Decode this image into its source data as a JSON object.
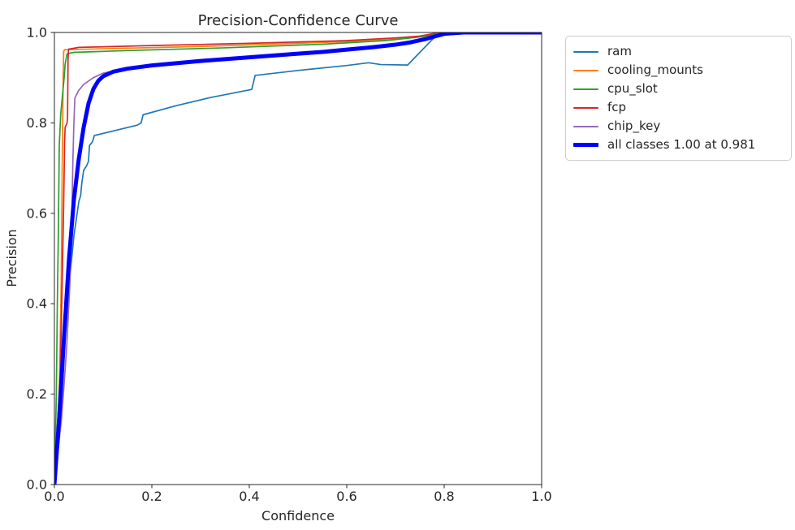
{
  "chart_data": {
    "type": "line",
    "title": "Precision-Confidence Curve",
    "xlabel": "Confidence",
    "ylabel": "Precision",
    "xlim": [
      0.0,
      1.0
    ],
    "ylim": [
      0.0,
      1.0
    ],
    "xticks": [
      0.0,
      0.2,
      0.4,
      0.6,
      0.8,
      1.0
    ],
    "yticks": [
      0.0,
      0.2,
      0.4,
      0.6,
      0.8,
      1.0
    ],
    "xtick_labels": [
      "0.0",
      "0.2",
      "0.4",
      "0.6",
      "0.8",
      "1.0"
    ],
    "ytick_labels": [
      "0.0",
      "0.2",
      "0.4",
      "0.6",
      "0.8",
      "1.0"
    ],
    "grid": false,
    "legend_position": "outside-upper-right",
    "axis_color": "#262626",
    "background_color": "#ffffff",
    "series": [
      {
        "name": "ram",
        "color": "#1f77b4",
        "width": 1.7,
        "points": [
          [
            0.0,
            0.0
          ],
          [
            0.004,
            0.05
          ],
          [
            0.008,
            0.12
          ],
          [
            0.015,
            0.22
          ],
          [
            0.02,
            0.3
          ],
          [
            0.03,
            0.44
          ],
          [
            0.04,
            0.55
          ],
          [
            0.05,
            0.625
          ],
          [
            0.054,
            0.64
          ],
          [
            0.056,
            0.665
          ],
          [
            0.06,
            0.695
          ],
          [
            0.066,
            0.705
          ],
          [
            0.07,
            0.715
          ],
          [
            0.072,
            0.75
          ],
          [
            0.078,
            0.758
          ],
          [
            0.082,
            0.772
          ],
          [
            0.17,
            0.795
          ],
          [
            0.178,
            0.8
          ],
          [
            0.182,
            0.818
          ],
          [
            0.25,
            0.838
          ],
          [
            0.32,
            0.856
          ],
          [
            0.405,
            0.874
          ],
          [
            0.412,
            0.905
          ],
          [
            0.5,
            0.916
          ],
          [
            0.6,
            0.927
          ],
          [
            0.645,
            0.933
          ],
          [
            0.67,
            0.929
          ],
          [
            0.725,
            0.928
          ],
          [
            0.785,
            0.995
          ],
          [
            0.81,
            1.0
          ],
          [
            1.0,
            1.0
          ]
        ]
      },
      {
        "name": "cooling_mounts",
        "color": "#ff7f0e",
        "width": 1.7,
        "points": [
          [
            0.0,
            0.0
          ],
          [
            0.01,
            0.2
          ],
          [
            0.014,
            0.45
          ],
          [
            0.016,
            0.7
          ],
          [
            0.018,
            0.9
          ],
          [
            0.019,
            0.958
          ],
          [
            0.021,
            0.962
          ],
          [
            0.1,
            0.964
          ],
          [
            0.3,
            0.969
          ],
          [
            0.5,
            0.976
          ],
          [
            0.65,
            0.982
          ],
          [
            0.72,
            0.987
          ],
          [
            0.78,
            0.995
          ],
          [
            0.82,
            1.0
          ],
          [
            1.0,
            1.0
          ]
        ]
      },
      {
        "name": "cpu_slot",
        "color": "#2ca02c",
        "width": 1.7,
        "points": [
          [
            0.0,
            0.0
          ],
          [
            0.004,
            0.2
          ],
          [
            0.006,
            0.4
          ],
          [
            0.008,
            0.55
          ],
          [
            0.01,
            0.75
          ],
          [
            0.013,
            0.82
          ],
          [
            0.016,
            0.855
          ],
          [
            0.02,
            0.9
          ],
          [
            0.022,
            0.93
          ],
          [
            0.026,
            0.953
          ],
          [
            0.04,
            0.956
          ],
          [
            0.15,
            0.96
          ],
          [
            0.35,
            0.966
          ],
          [
            0.55,
            0.974
          ],
          [
            0.68,
            0.982
          ],
          [
            0.75,
            0.99
          ],
          [
            0.8,
            0.998
          ],
          [
            0.83,
            1.0
          ],
          [
            1.0,
            1.0
          ]
        ]
      },
      {
        "name": "fcp",
        "color": "#d62728",
        "width": 1.7,
        "points": [
          [
            0.0,
            0.0
          ],
          [
            0.012,
            0.25
          ],
          [
            0.016,
            0.45
          ],
          [
            0.019,
            0.62
          ],
          [
            0.021,
            0.76
          ],
          [
            0.022,
            0.79
          ],
          [
            0.026,
            0.8
          ],
          [
            0.027,
            0.812
          ],
          [
            0.028,
            0.94
          ],
          [
            0.029,
            0.963
          ],
          [
            0.05,
            0.967
          ],
          [
            0.2,
            0.971
          ],
          [
            0.4,
            0.976
          ],
          [
            0.6,
            0.982
          ],
          [
            0.7,
            0.988
          ],
          [
            0.75,
            0.992
          ],
          [
            0.79,
            1.0
          ],
          [
            1.0,
            1.0
          ]
        ]
      },
      {
        "name": "chip_key",
        "color": "#9467bd",
        "width": 1.7,
        "points": [
          [
            0.0,
            0.0
          ],
          [
            0.015,
            0.15
          ],
          [
            0.025,
            0.3
          ],
          [
            0.032,
            0.45
          ],
          [
            0.036,
            0.6
          ],
          [
            0.038,
            0.72
          ],
          [
            0.04,
            0.8
          ],
          [
            0.042,
            0.855
          ],
          [
            0.05,
            0.872
          ],
          [
            0.06,
            0.885
          ],
          [
            0.08,
            0.9
          ],
          [
            0.1,
            0.91
          ],
          [
            0.14,
            0.919
          ],
          [
            0.2,
            0.928
          ],
          [
            0.3,
            0.938
          ],
          [
            0.4,
            0.946
          ],
          [
            0.5,
            0.954
          ],
          [
            0.6,
            0.962
          ],
          [
            0.67,
            0.968
          ],
          [
            0.72,
            0.974
          ],
          [
            0.76,
            0.985
          ],
          [
            0.79,
            0.996
          ],
          [
            0.82,
            1.0
          ],
          [
            1.0,
            1.0
          ]
        ]
      },
      {
        "name": "all classes 1.00 at 0.981",
        "color": "#0000ff",
        "width": 5,
        "points": [
          [
            0.0,
            0.0
          ],
          [
            0.01,
            0.15
          ],
          [
            0.02,
            0.33
          ],
          [
            0.03,
            0.5
          ],
          [
            0.04,
            0.63
          ],
          [
            0.05,
            0.72
          ],
          [
            0.06,
            0.79
          ],
          [
            0.07,
            0.843
          ],
          [
            0.08,
            0.875
          ],
          [
            0.09,
            0.893
          ],
          [
            0.1,
            0.903
          ],
          [
            0.12,
            0.913
          ],
          [
            0.15,
            0.92
          ],
          [
            0.2,
            0.927
          ],
          [
            0.25,
            0.932
          ],
          [
            0.3,
            0.937
          ],
          [
            0.35,
            0.941
          ],
          [
            0.4,
            0.945
          ],
          [
            0.45,
            0.949
          ],
          [
            0.5,
            0.953
          ],
          [
            0.55,
            0.957
          ],
          [
            0.6,
            0.962
          ],
          [
            0.65,
            0.967
          ],
          [
            0.7,
            0.973
          ],
          [
            0.73,
            0.978
          ],
          [
            0.76,
            0.985
          ],
          [
            0.78,
            0.991
          ],
          [
            0.8,
            0.997
          ],
          [
            0.84,
            1.0
          ],
          [
            0.981,
            1.0
          ],
          [
            1.0,
            1.0
          ]
        ]
      }
    ]
  }
}
